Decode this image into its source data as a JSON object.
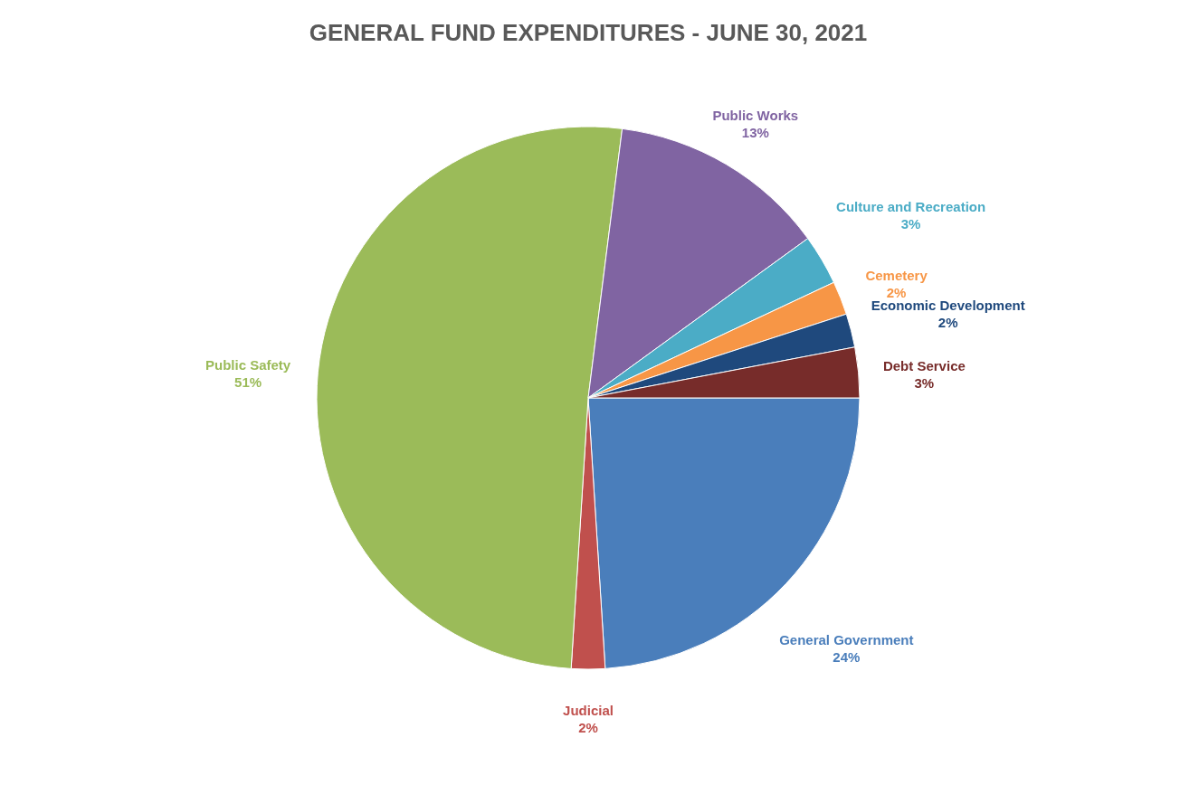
{
  "chart_data": {
    "type": "pie",
    "title": "GENERAL FUND EXPENDITURES - JUNE 30, 2021",
    "categories": [
      "General Government",
      "Judicial",
      "Public Safety",
      "Public Works",
      "Culture and Recreation",
      "Cemetery",
      "Economic Development",
      "Debt Service"
    ],
    "values": [
      24,
      2,
      51,
      13,
      3,
      2,
      2,
      3
    ],
    "colors": [
      "#4a7ebb",
      "#c0504d",
      "#9bbb59",
      "#8064a2",
      "#4bacc6",
      "#f79646",
      "#1f497d",
      "#772c2a"
    ],
    "value_labels": [
      "24%",
      "2%",
      "51%",
      "13%",
      "3%",
      "2%",
      "2%",
      "3%"
    ],
    "legend": false
  }
}
